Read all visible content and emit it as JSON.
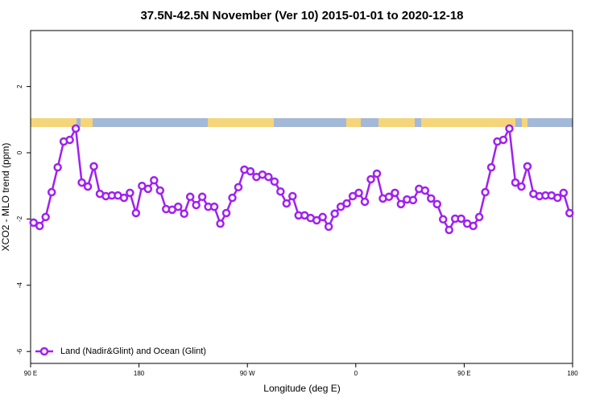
{
  "chart_data": {
    "type": "line",
    "title": "37.5N-42.5N November (Ver 10)   2015-01-01 to 2020-12-18",
    "x_label": "Longitude (deg E)",
    "y_label": "XCO2 - MLO trend (ppm)",
    "xlim": [
      90,
      540
    ],
    "ylim": [
      -6.36,
      3.69
    ],
    "xticks": [
      {
        "value": 90,
        "label": "90 E"
      },
      180,
      {
        "value": 270,
        "label": "90 W"
      },
      {
        "value": 360,
        "label": "0"
      },
      {
        "value": 450,
        "label": "90 E"
      },
      {
        "value": 540,
        "label": "180"
      }
    ],
    "yticks": [
      -6,
      -4,
      -2,
      0,
      2
    ],
    "legend": "bottomleft",
    "x": [
      92.5,
      97.5,
      102.5,
      107.5,
      112.5,
      117.5,
      122.5,
      127.5,
      132.5,
      137.5,
      142.5,
      147.5,
      152.5,
      157.5,
      162.5,
      167.5,
      172.5,
      177.5,
      182.5,
      187.5,
      192.5,
      197.5,
      202.5,
      207.5,
      212.5,
      217.5,
      222.5,
      227.5,
      232.5,
      237.5,
      242.5,
      247.5,
      252.5,
      257.5,
      262.5,
      267.5,
      272.5,
      277.5,
      282.5,
      287.5,
      292.5,
      297.5,
      302.5,
      307.5,
      312.5,
      317.5,
      322.5,
      327.5,
      332.5,
      337.5,
      342.5,
      347.5,
      352.5,
      357.5,
      362.5,
      367.5,
      372.5,
      377.5,
      382.5,
      387.5,
      392.5,
      397.5,
      402.5,
      407.5,
      412.5,
      417.5,
      422.5,
      427.5,
      432.5,
      437.5,
      442.5,
      447.5,
      452.5,
      457.5,
      462.5,
      467.5,
      472.5,
      477.5,
      482.5,
      487.5,
      492.5,
      497.5,
      502.5,
      507.5,
      512.5,
      517.5,
      522.5,
      527.5,
      532.5,
      537.5
    ],
    "series": [
      {
        "name": "Land (Nadir&Glint) and Ocean (Glint)",
        "color": "#a020f0",
        "values": [
          -2.11,
          -2.21,
          -1.94,
          -1.19,
          -0.44,
          0.34,
          0.39,
          0.73,
          -0.9,
          -1.02,
          -0.41,
          -1.24,
          -1.31,
          -1.29,
          -1.29,
          -1.36,
          -1.21,
          -1.82,
          -1.0,
          -1.09,
          -0.83,
          -1.14,
          -1.7,
          -1.72,
          -1.63,
          -1.84,
          -1.33,
          -1.58,
          -1.33,
          -1.63,
          -1.63,
          -2.14,
          -1.82,
          -1.36,
          -1.04,
          -0.51,
          -0.56,
          -0.73,
          -0.66,
          -0.73,
          -0.87,
          -1.17,
          -1.53,
          -1.31,
          -1.89,
          -1.89,
          -1.97,
          -2.04,
          -1.94,
          -2.23,
          -1.84,
          -1.63,
          -1.53,
          -1.31,
          -1.21,
          -1.48,
          -0.8,
          -0.63,
          -1.38,
          -1.33,
          -1.21,
          -1.55,
          -1.41,
          -1.43,
          -1.09,
          -1.14,
          -1.38,
          -1.55,
          -2.01,
          -2.33,
          -1.99,
          -1.99,
          -2.14,
          -2.21,
          -1.94,
          -1.19,
          -0.44,
          0.34,
          0.39,
          0.73,
          -0.9,
          -1.02,
          -0.41,
          -1.24,
          -1.31,
          -1.29,
          -1.29,
          -1.36,
          -1.21,
          -1.82
        ]
      }
    ]
  }
}
